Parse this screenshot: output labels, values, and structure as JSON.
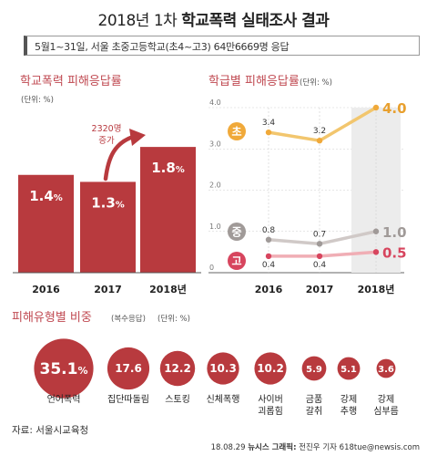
{
  "title_prefix": "2018년 1차 ",
  "title_bold": "학교폭력 실태조사 결과",
  "subtitle": "5월1~31일, 서울 초중고등학교(초4~고3) 64만6669명 응답",
  "source": "자료: 서울시교육청",
  "credit_prefix": "18.08.29 ",
  "credit_bold": "뉴시스 그래픽:",
  "credit_suffix": " 전진우 기자 618tue@newsis.com",
  "colors": {
    "red": "#b8393f",
    "bar_dark": "#b83a3e",
    "orange_line": "#f2c66e",
    "orange_dot": "#f0a93a",
    "orange_label": "#e8a02f",
    "gray_line": "#d0c9c7",
    "gray_dot": "#a09a98",
    "pink_line": "#f0aeb5",
    "pink_dot": "#d7455e",
    "heading": "#c04a52"
  },
  "chart_data": [
    {
      "type": "bar",
      "title": "학교폭력 피해응답률",
      "unit_label": "(단위: %)",
      "categories": [
        "2016",
        "2017",
        "2018년"
      ],
      "values": [
        1.4,
        1.3,
        1.8
      ],
      "value_labels": [
        "1.4",
        "1.3",
        "1.8"
      ],
      "value_suffix": "%",
      "annotation": {
        "line1": "2320명",
        "line2": "증가"
      }
    },
    {
      "type": "line",
      "title": "학급별 피해응답률",
      "unit_label": "(단위: %)",
      "x": [
        "2016",
        "2017",
        "2018년"
      ],
      "yticks": [
        "4.0",
        "3.0",
        "2.0",
        "1.0",
        "0"
      ],
      "ylim": [
        0,
        4
      ],
      "grid": true,
      "series": [
        {
          "name": "초",
          "values": [
            3.4,
            3.2,
            4.0
          ],
          "labels": [
            "3.4",
            "3.2",
            "4.0"
          ]
        },
        {
          "name": "중",
          "values": [
            0.8,
            0.7,
            1.0
          ],
          "labels": [
            "0.8",
            "0.7",
            "1.0"
          ]
        },
        {
          "name": "고",
          "values": [
            0.4,
            0.4,
            0.5
          ],
          "labels": [
            "0.4",
            "0.4",
            "0.5"
          ]
        }
      ]
    },
    {
      "type": "bubble",
      "title": "피해유형별 비중",
      "subtitle": "(복수응답)",
      "unit_label": "(단위: %)",
      "categories": [
        [
          "언어폭력"
        ],
        [
          "집단따돌림"
        ],
        [
          "스토킹"
        ],
        [
          "신체폭행"
        ],
        [
          "사이버",
          "괴롭힘"
        ],
        [
          "금품",
          "갈취"
        ],
        [
          "강제",
          "추행"
        ],
        [
          "강제",
          "심부름"
        ]
      ],
      "values": [
        35.1,
        17.6,
        12.2,
        10.3,
        10.2,
        5.9,
        5.1,
        3.6
      ],
      "value_labels": [
        "35.1",
        "17.6",
        "12.2",
        "10.3",
        "10.2",
        "5.9",
        "5.1",
        "3.6"
      ],
      "value_suffix": "%"
    }
  ]
}
